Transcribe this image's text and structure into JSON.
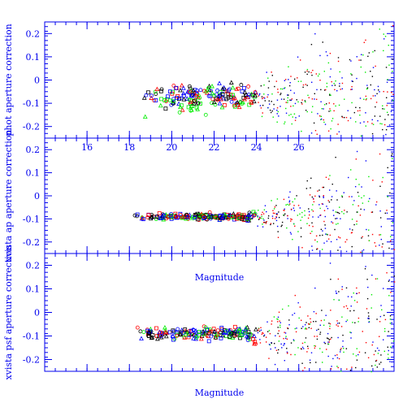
{
  "colors": {
    "axis": "#0000ee",
    "series": [
      "#ff0000",
      "#0000ff",
      "#00ee00",
      "#000000"
    ]
  },
  "chart_data": [
    {
      "type": "scatter",
      "title": "",
      "xlabel": "",
      "ylabel": "phot aperture correction",
      "xlim": [
        14,
        30.5
      ],
      "ylim": [
        -0.25,
        0.25
      ],
      "xticks": [
        16,
        18,
        20,
        22,
        24,
        26
      ],
      "yticks": [
        -0.2,
        -0.1,
        0,
        0.1,
        0.2
      ],
      "xtick_labels": [
        "16",
        "18",
        "20",
        "22",
        "24",
        "26"
      ],
      "ytick_labels": [
        "-0.2",
        "-0.1",
        "0",
        "0.1",
        "0.2"
      ],
      "grid": false,
      "series_shape": {
        "bright_start": 18.6,
        "center": -0.07,
        "spread": 0.05,
        "green_offset": -0.04
      }
    },
    {
      "type": "scatter",
      "title": "",
      "xlabel": "",
      "ylabel": "xvista ap aperture correction",
      "xlim": [
        14,
        30.5
      ],
      "ylim": [
        -0.25,
        0.25
      ],
      "xticks": [
        16,
        18,
        20,
        22,
        24,
        26
      ],
      "yticks": [
        -0.2,
        -0.1,
        0,
        0.1,
        0.2
      ],
      "xtick_labels": [],
      "ytick_labels": [
        "-0.2",
        "-0.1",
        "0",
        "0.1",
        "0.2"
      ],
      "grid": false,
      "series_shape": {
        "bright_start": 18.2,
        "center": -0.09,
        "spread": 0.012,
        "green_offset": 0
      }
    },
    {
      "type": "scatter",
      "title": "Magnitude",
      "xlabel": "Magnitude",
      "ylabel": "xvista psf aperture correction",
      "xlim": [
        14,
        30.5
      ],
      "ylim": [
        -0.25,
        0.25
      ],
      "xticks": [
        16,
        18,
        20,
        22,
        24,
        26
      ],
      "yticks": [
        -0.2,
        -0.1,
        0,
        0.1,
        0.2
      ],
      "xtick_labels": [],
      "ytick_labels": [
        "-0.2",
        "-0.1",
        "0",
        "0.1",
        "0.2"
      ],
      "grid": false,
      "series_shape": {
        "bright_start": 18.3,
        "center": -0.09,
        "spread": 0.025,
        "green_offset": 0
      }
    }
  ]
}
